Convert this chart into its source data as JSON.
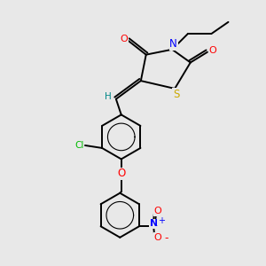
{
  "background_color": "#e8e8e8",
  "bond_color": "#000000",
  "atom_colors": {
    "O": "#ff0000",
    "N": "#0000ff",
    "S": "#ccaa00",
    "Cl": "#00bb00",
    "H": "#008888",
    "NO2_N": "#0000ff",
    "NO2_O": "#ff0000"
  },
  "lw": 1.4
}
